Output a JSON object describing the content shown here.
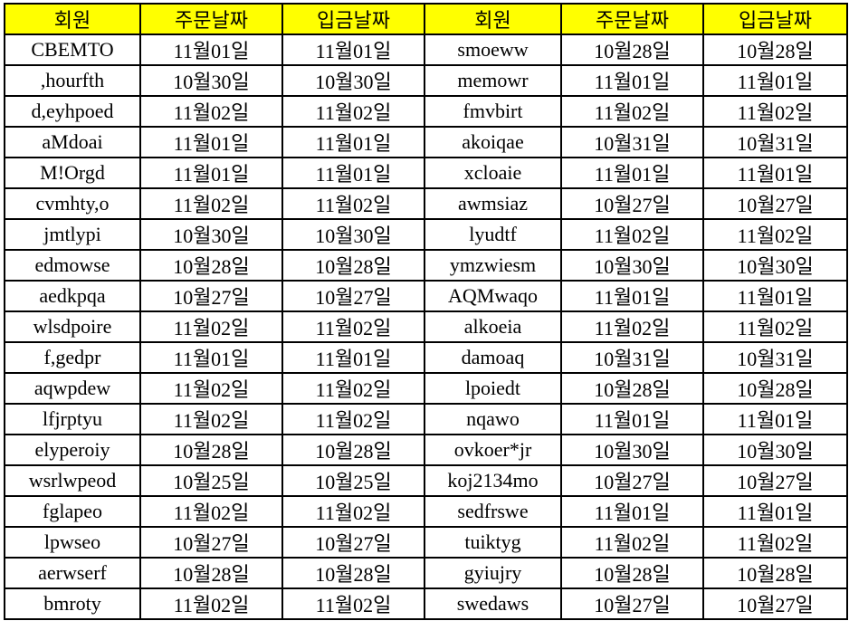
{
  "colors": {
    "header_bg": "#ffff00",
    "grid": "#000000"
  },
  "headers": [
    "회원",
    "주문날짜",
    "입금날짜",
    "회원",
    "주문날짜",
    "입금날짜"
  ],
  "rows": [
    [
      "CBEMTO",
      "11월01일",
      "11월01일",
      "smoeww",
      "10월28일",
      "10월28일"
    ],
    [
      ",hourfth",
      "10월30일",
      "10월30일",
      "memowr",
      "11월01일",
      "11월01일"
    ],
    [
      "d,eyhpoed",
      "11월02일",
      "11월02일",
      "fmvbirt",
      "11월02일",
      "11월02일"
    ],
    [
      "aMdoai",
      "11월01일",
      "11월01일",
      "akoiqae",
      "10월31일",
      "10월31일"
    ],
    [
      "M!Orgd",
      "11월01일",
      "11월01일",
      "xcloaie",
      "11월01일",
      "11월01일"
    ],
    [
      "cvmhty,o",
      "11월02일",
      "11월02일",
      "awmsiaz",
      "10월27일",
      "10월27일"
    ],
    [
      "jmtlypi",
      "10월30일",
      "10월30일",
      "lyudtf",
      "11월02일",
      "11월02일"
    ],
    [
      "edmowse",
      "10월28일",
      "10월28일",
      "ymzwiesm",
      "10월30일",
      "10월30일"
    ],
    [
      "aedkpqa",
      "10월27일",
      "10월27일",
      "AQMwaqo",
      "11월01일",
      "11월01일"
    ],
    [
      "wlsdpoire",
      "11월02일",
      "11월02일",
      "alkoeia",
      "11월02일",
      "11월02일"
    ],
    [
      "f,gedpr",
      "11월01일",
      "11월01일",
      "damoaq",
      "10월31일",
      "10월31일"
    ],
    [
      "aqwpdew",
      "11월02일",
      "11월02일",
      "lpoiedt",
      "10월28일",
      "10월28일"
    ],
    [
      "lfjrptyu",
      "11월02일",
      "11월02일",
      "nqawo",
      "11월01일",
      "11월01일"
    ],
    [
      "elyperoiy",
      "10월28일",
      "10월28일",
      "ovkoer*jr",
      "10월30일",
      "10월30일"
    ],
    [
      "wsrlwpeod",
      "10월25일",
      "10월25일",
      "koj2134mo",
      "10월27일",
      "10월27일"
    ],
    [
      "fglapeo",
      "11월02일",
      "11월02일",
      "sedfrswe",
      "11월01일",
      "11월01일"
    ],
    [
      "lpwseo",
      "10월27일",
      "10월27일",
      "tuiktyg",
      "11월02일",
      "11월02일"
    ],
    [
      "aerwserf",
      "10월28일",
      "10월28일",
      "gyiujry",
      "10월28일",
      "10월28일"
    ],
    [
      "bmroty",
      "11월02일",
      "11월02일",
      "swedaws",
      "10월27일",
      "10월27일"
    ]
  ]
}
